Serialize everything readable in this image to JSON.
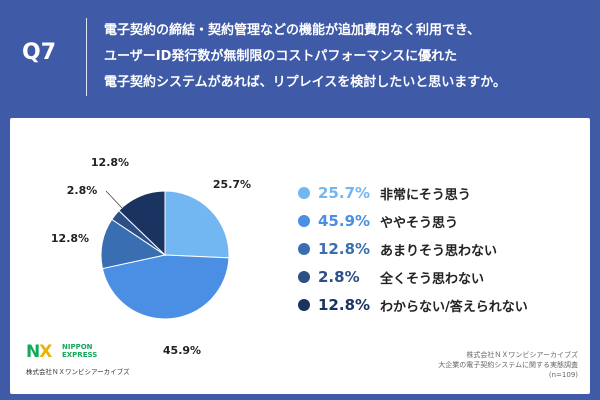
{
  "question": {
    "number": "Q7",
    "lines": [
      "電子契約の締結・契約管理などの機能が追加費用なく利用でき、",
      "ユーザーID発行数が無制限のコストパフォーマンスに優れた",
      "電子契約システムがあれば、リプレイスを検討したいと思いますか。"
    ]
  },
  "chart_data": {
    "type": "pie",
    "categories": [
      "非常にそう思う",
      "ややそう思う",
      "あまりそう思わない",
      "全くそう思わない",
      "わからない/答えられない"
    ],
    "values": [
      25.7,
      45.9,
      12.8,
      2.8,
      12.8
    ],
    "labels": [
      "25.7%",
      "45.9%",
      "12.8%",
      "2.8%",
      "12.8%"
    ],
    "colors": [
      "#72b6f2",
      "#4a8fe3",
      "#3a6eb3",
      "#2d4f86",
      "#1b3360"
    ],
    "start": "12 o'clock",
    "direction": "clockwise",
    "legend_placement": "right"
  },
  "logo": {
    "mark_n": "N",
    "mark_x": "X",
    "name_line1": "NIPPON",
    "name_line2": "EXPRESS",
    "company": "株式会社ＮＸワンビシアーカイブズ"
  },
  "footer": {
    "line1": "株式会社ＮＸワンビシアーカイブズ",
    "line2": "大企業の電子契約システムに関する実態調査",
    "line3": "(n=109)"
  }
}
